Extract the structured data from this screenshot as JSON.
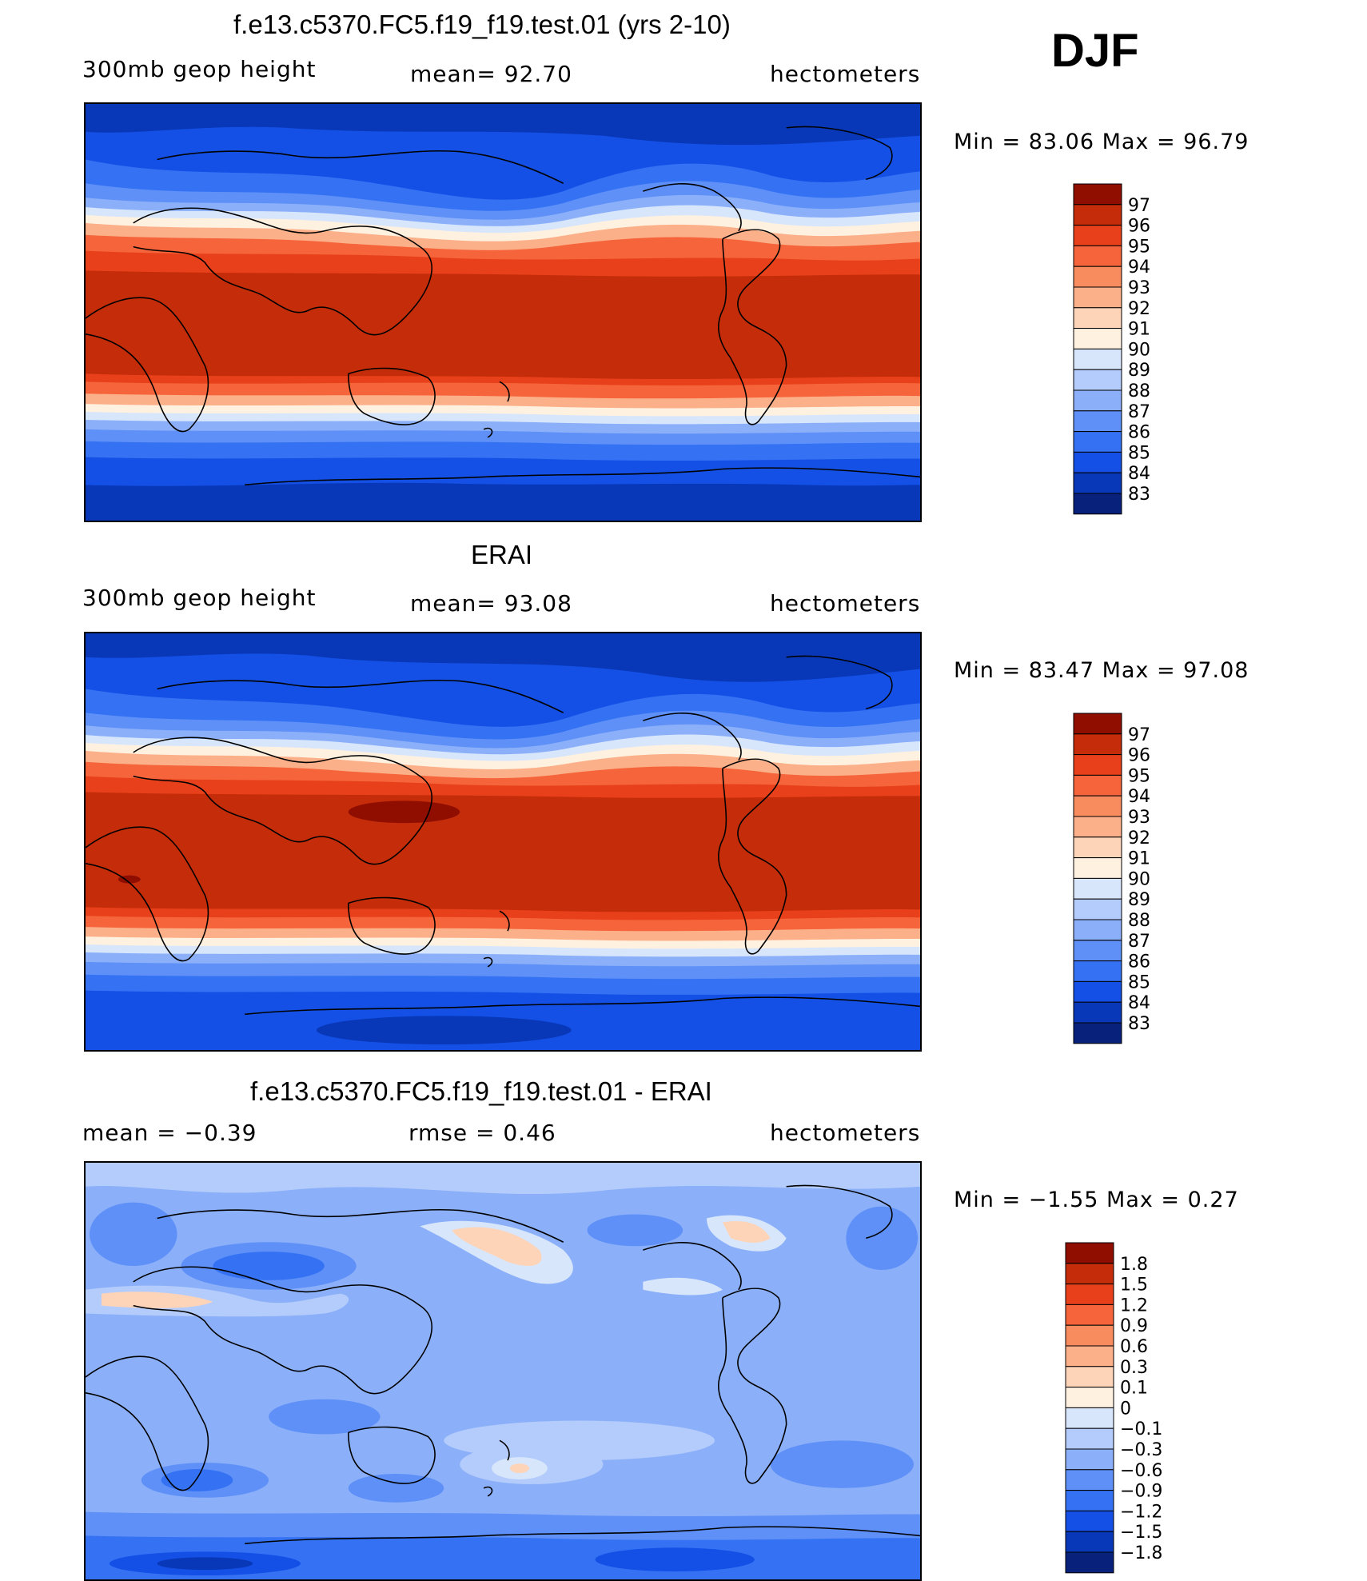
{
  "season": "DJF",
  "colors": {
    "scale_abs": [
      "#08217a",
      "#0838b8",
      "#1450e6",
      "#3572f3",
      "#5e90f7",
      "#8bb0f9",
      "#b4ccfb",
      "#d8e6fc",
      "#fff1e0",
      "#fdd4b8",
      "#fcb089",
      "#f98c5f",
      "#f5643a",
      "#e7401a",
      "#c42c0a",
      "#8f0e00"
    ],
    "scale_diff": [
      "#08217a",
      "#0838b8",
      "#1450e6",
      "#3572f3",
      "#5e90f7",
      "#8bb0f9",
      "#b4ccfb",
      "#d8e6fc",
      "#fff1e0",
      "#fdd4b8",
      "#fcb089",
      "#f98c5f",
      "#f5643a",
      "#e7401a",
      "#c42c0a",
      "#8f0e00"
    ],
    "coast": "#000000"
  },
  "panels": [
    {
      "id": "model",
      "title": "f.e13.c5370.FC5.f19_f19.test.01 (yrs 2-10)",
      "left_label": "300mb  geop  height",
      "center_label": "mean=   92.70",
      "right_label": "hectometers",
      "stats": "Min  =    83.06  Max  =    96.79",
      "colorbar_labels": [
        "97",
        "96",
        "95",
        "94",
        "93",
        "92",
        "91",
        "90",
        "89",
        "88",
        "87",
        "86",
        "85",
        "84",
        "83"
      ]
    },
    {
      "id": "obs",
      "title": "ERAI",
      "left_label": "300mb  geop  height",
      "center_label": "mean=   93.08",
      "right_label": "hectometers",
      "stats": "Min  =    83.47  Max  =    97.08",
      "colorbar_labels": [
        "97",
        "96",
        "95",
        "94",
        "93",
        "92",
        "91",
        "90",
        "89",
        "88",
        "87",
        "86",
        "85",
        "84",
        "83"
      ]
    },
    {
      "id": "diff",
      "title": "f.e13.c5370.FC5.f19_f19.test.01 - ERAI",
      "left_label": "mean  =    −0.39",
      "center_label": "rmse  =     0.46",
      "right_label": "hectometers",
      "stats": "Min  =   −1.55  Max  =     0.27",
      "colorbar_labels": [
        "1.8",
        "1.5",
        "1.2",
        "0.9",
        "0.6",
        "0.3",
        "0.1",
        "0",
        "−0.1",
        "−0.3",
        "−0.6",
        "−0.9",
        "−1.2",
        "−1.5",
        "−1.8"
      ]
    }
  ]
}
